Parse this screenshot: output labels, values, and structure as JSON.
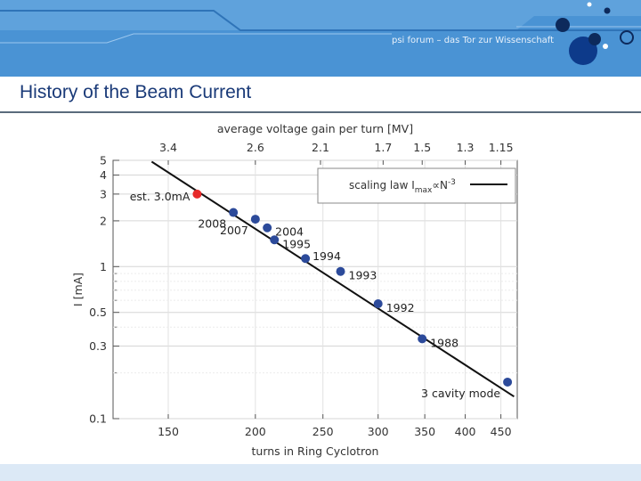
{
  "header": {
    "tagline": "psi forum – das Tor zur Wissenschaft",
    "title": "History of the Beam Current",
    "colors": {
      "banner": "#4a93d4",
      "banner_light": "#6aa8e0",
      "dot": "#0d2a5c",
      "title": "#1a3a78"
    }
  },
  "chart_data": {
    "type": "scatter",
    "scale": "log-log",
    "title": "",
    "xlabel": "turns in Ring Cyclotron",
    "ylabel": "I [mA]",
    "top_axis_label": "average voltage gain per turn [MV]",
    "xlim": [
      125,
      475
    ],
    "ylim": [
      0.1,
      5
    ],
    "x_ticks": [
      150,
      200,
      250,
      300,
      350,
      400,
      450
    ],
    "y_ticks": [
      {
        "v": 5,
        "label": "5"
      },
      {
        "v": 4,
        "label": "4"
      },
      {
        "v": 3,
        "label": "3"
      },
      {
        "v": 2,
        "label": "2"
      },
      {
        "v": 1,
        "label": "1"
      },
      {
        "v": 0.5,
        "label": "0.5"
      },
      {
        "v": 0.3,
        "label": "0.3"
      },
      {
        "v": 0.1,
        "label": "0.1"
      }
    ],
    "top_ticks": [
      {
        "label": "3.4",
        "x": 150
      },
      {
        "label": "2.6",
        "x": 200
      },
      {
        "label": "2.1",
        "x": 248
      },
      {
        "label": "1.7",
        "x": 305
      },
      {
        "label": "1.5",
        "x": 347
      },
      {
        "label": "1.3",
        "x": 400
      },
      {
        "label": "1.15",
        "x": 450
      }
    ],
    "legend": {
      "position": "top-right",
      "label_prefix": "scaling law I",
      "label_sub": "max",
      "label_rel": "∝",
      "label_suffix": "N",
      "label_sup": "-3"
    },
    "fit_line": {
      "x": [
        142,
        470
      ],
      "y": [
        4.9,
        0.1397
      ]
    },
    "points": [
      {
        "x": 165,
        "y": 3.0,
        "label": "est. 3.0mA",
        "color": "#e62a2a",
        "label_side": "left"
      },
      {
        "x": 186,
        "y": 2.27,
        "label": "2008",
        "color": "#2c4a9a",
        "label_side": "left-below"
      },
      {
        "x": 200,
        "y": 2.05,
        "label": "2007",
        "color": "#2c4a9a",
        "label_side": "left-below"
      },
      {
        "x": 208,
        "y": 1.8,
        "label": "2004",
        "color": "#2c4a9a",
        "label_side": "right"
      },
      {
        "x": 213,
        "y": 1.5,
        "label": "1995",
        "color": "#2c4a9a",
        "label_side": "right"
      },
      {
        "x": 236,
        "y": 1.13,
        "label": "1994",
        "color": "#2c4a9a",
        "label_side": "right-above"
      },
      {
        "x": 265,
        "y": 0.93,
        "label": "1993",
        "color": "#2c4a9a",
        "label_side": "right"
      },
      {
        "x": 300,
        "y": 0.57,
        "label": "1992",
        "color": "#2c4a9a",
        "label_side": "right"
      },
      {
        "x": 347,
        "y": 0.335,
        "label": "1988",
        "color": "#2c4a9a",
        "label_side": "right"
      },
      {
        "x": 460,
        "y": 0.174,
        "label": "3 cavity mode",
        "color": "#2c4a9a",
        "label_side": "left-below"
      }
    ]
  }
}
